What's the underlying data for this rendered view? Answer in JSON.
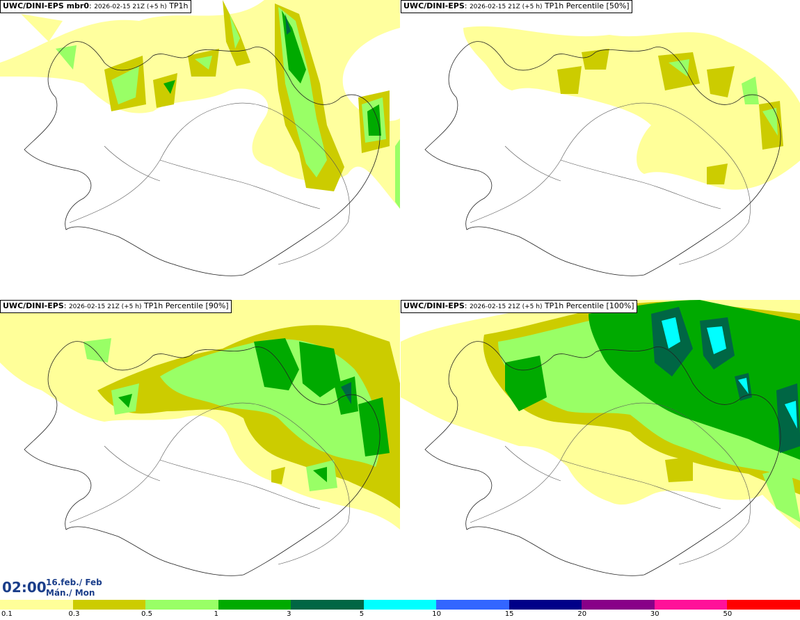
{
  "panels": [
    {
      "title_bold": "UWC/DINI-EPS mbr0",
      "title_date": "2026-02-15 21Z (+5 h)",
      "title_field": "TP1h"
    },
    {
      "title_bold": "UWC/DINI-EPS",
      "title_date": "2026-02-15 21Z (+5 h)",
      "title_field": "TP1h Percentile [50%]"
    },
    {
      "title_bold": "UWC/DINI-EPS",
      "title_date": "2026-02-15 21Z (+5 h)",
      "title_field": "TP1h Percentile [90%]"
    },
    {
      "title_bold": "UWC/DINI-EPS",
      "title_date": "2026-02-15 21Z (+5 h)",
      "title_field": "TP1h Percentile [100%]"
    }
  ],
  "valid_time": {
    "time": "02:00",
    "date_line1": "16.feb./ Feb",
    "date_line2": "Mán./ Mon"
  },
  "legend": {
    "colors": [
      "#ffff99",
      "#cccc00",
      "#99ff66",
      "#00aa00",
      "#006644",
      "#00ffff",
      "#3366ff",
      "#000088",
      "#880088",
      "#ff1199",
      "#ff0000"
    ],
    "labels": [
      "0.1",
      "0.3",
      "0.5",
      "1",
      "3",
      "5",
      "10",
      "15",
      "20",
      "30",
      "50"
    ]
  },
  "palette": {
    "coast": "#222222",
    "road": "#555555",
    "sea": "#ffffff"
  }
}
